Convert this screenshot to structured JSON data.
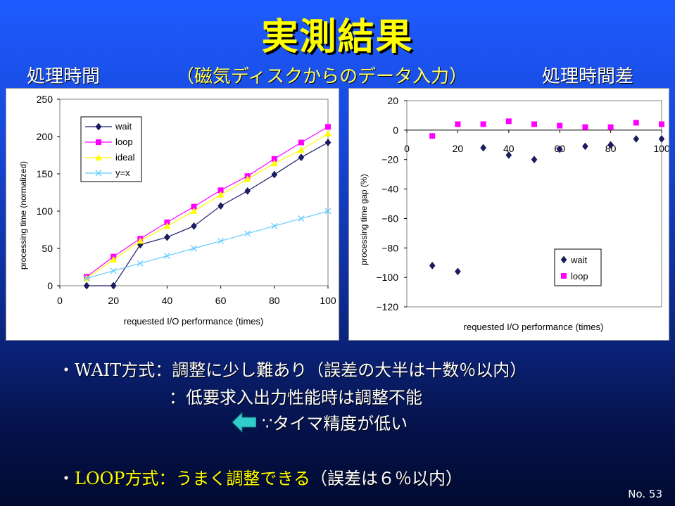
{
  "slide": {
    "title": "実測結果",
    "subtitle": "（磁気ディスクからのデータ入力）",
    "label_left": "処理時間",
    "label_right": "処理時間差",
    "slide_number": "No. 53"
  },
  "bullets": {
    "wait_prefix": "・",
    "wait_name": "WAIT",
    "wait_text": "方式：調整に少し難あり（誤差の大半は十数％以内）",
    "wait_line2": "：低要求入出力性能時は調整不能",
    "wait_reason": "∵タイマ精度が低い",
    "loop_prefix": "・",
    "loop_name": "LOOP",
    "loop_method": "方式：",
    "loop_highlight": "うまく調整できる",
    "loop_text": "（誤差は６％以内）"
  },
  "colors": {
    "title": "#ffff00",
    "wait": "#1a1a6e",
    "loop": "#ff00ff",
    "ideal": "#ffff00",
    "yx": "#66ccff",
    "arrow": "#33cccc"
  },
  "chart_data": [
    {
      "type": "line",
      "xlabel": "requested I/O performance (times)",
      "ylabel": "processing time (normalized)",
      "xlim": [
        0,
        100
      ],
      "ylim": [
        0,
        250
      ],
      "xticks": [
        "0",
        "20",
        "40",
        "60",
        "80",
        "100"
      ],
      "yticks": [
        "0",
        "50",
        "100",
        "150",
        "200",
        "250"
      ],
      "x": [
        10,
        20,
        30,
        40,
        50,
        60,
        70,
        80,
        90,
        100
      ],
      "legend_position": "top-left",
      "series": [
        {
          "name": "wait",
          "values": [
            0,
            0,
            55,
            65,
            80,
            107,
            127,
            149,
            172,
            192
          ]
        },
        {
          "name": "loop",
          "values": [
            12,
            39,
            63,
            85,
            106,
            128,
            147,
            170,
            192,
            213
          ]
        },
        {
          "name": "ideal",
          "values": [
            10,
            35,
            60,
            80,
            100,
            122,
            143,
            164,
            182,
            204
          ]
        },
        {
          "name": "y=x",
          "values": [
            10,
            20,
            30,
            40,
            50,
            60,
            70,
            80,
            90,
            100
          ]
        }
      ]
    },
    {
      "type": "scatter",
      "xlabel": "requested I/O performance (times)",
      "ylabel": "processing time gap (%)",
      "xlim": [
        0,
        100
      ],
      "ylim": [
        -120,
        20
      ],
      "xticks": [
        "0",
        "20",
        "40",
        "60",
        "80",
        "100"
      ],
      "yticks": [
        "20",
        "0",
        "−20",
        "−40",
        "−60",
        "−80",
        "−100",
        "−120"
      ],
      "x": [
        10,
        20,
        30,
        40,
        50,
        60,
        70,
        80,
        90,
        100
      ],
      "legend_position": "bottom-right",
      "series": [
        {
          "name": "wait",
          "values": [
            -92,
            -96,
            -12,
            -17,
            -20,
            -13,
            -11,
            -10,
            -6,
            -6
          ]
        },
        {
          "name": "loop",
          "values": [
            -4,
            4,
            4,
            6,
            4,
            3,
            2,
            2,
            5,
            4
          ]
        }
      ]
    }
  ]
}
